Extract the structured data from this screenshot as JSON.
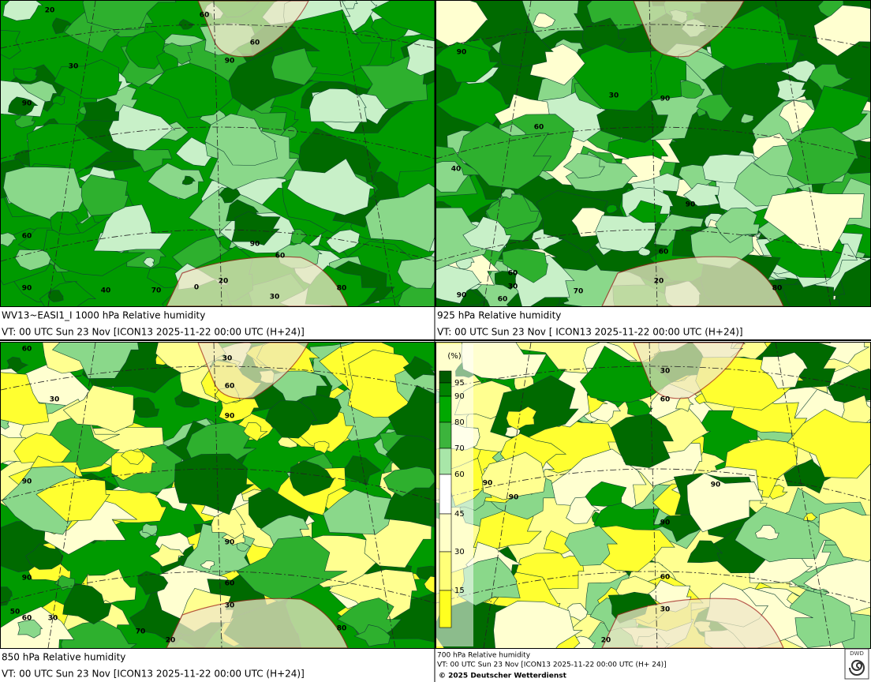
{
  "panels": [
    {
      "caption": [
        "WV13~EASI1_I 1000 hPa Relative humidity",
        "VT: 00 UTC Sun  23 Nov [ICON13 2025-11-22 00:00 UTC  (H+24)]"
      ],
      "contour_labels": [
        "20",
        "60",
        "60",
        "90",
        "30",
        "90",
        "60",
        "90",
        "60",
        "90",
        "40",
        "70",
        "0",
        "20",
        "30",
        "80"
      ]
    },
    {
      "caption": [
        "925 hPa Relative humidity",
        "VT: 00 UTC Sun  23 Nov [ ICON13 2025-11-22 00:00 UTC  (H+24)]"
      ],
      "contour_labels": [
        "90",
        "30",
        "90",
        "60",
        "40",
        "90",
        "60",
        "60",
        "30",
        "90",
        "60",
        "70",
        "20",
        "80"
      ]
    },
    {
      "caption": [
        "850 hPa  Relative humidity",
        "VT: 00 UTC Sun  23 Nov [ICON13 2025-11-22 00:00 UTC  (H+24)]"
      ],
      "contour_labels": [
        "60",
        "30",
        "60",
        "30",
        "90",
        "90",
        "90",
        "90",
        "60",
        "30",
        "50",
        "60",
        "30",
        "70",
        "20",
        "80"
      ]
    },
    {
      "caption": [
        "700 hPa Relative humidity",
        "VT: 00 UTC Sun  23 Nov [ICON13 2025-11-22 00:00 UTC  (H+ 24)]"
      ],
      "contour_labels": [
        "30",
        "60",
        "90",
        "90",
        "90",
        "90",
        "60",
        "30",
        "20"
      ]
    }
  ],
  "legend": {
    "unit": "(%)",
    "levels": [
      "95",
      "90",
      "80",
      "70",
      "60",
      "45",
      "30",
      "15"
    ]
  },
  "footer": {
    "copyright": "© 2025 Deutscher Wetterdienst",
    "logo": "DWD"
  }
}
